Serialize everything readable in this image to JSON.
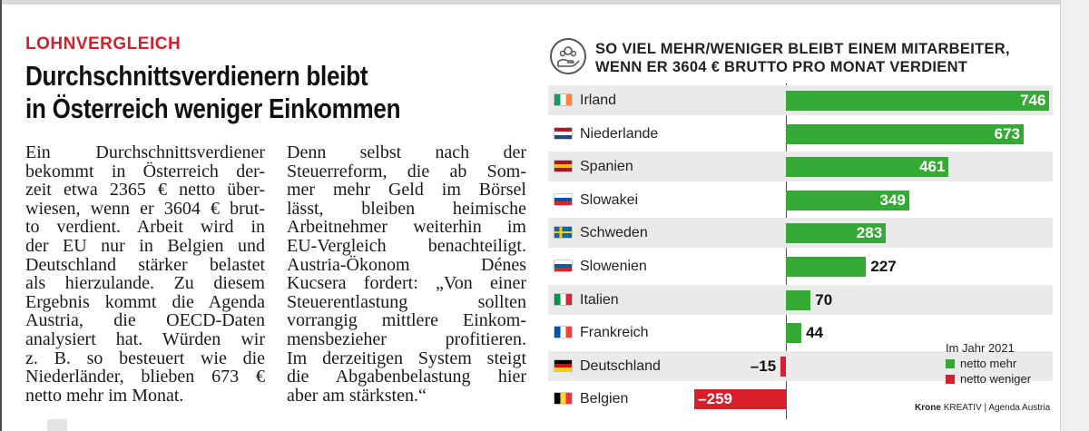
{
  "article": {
    "kicker": "LOHNVERGLEICH",
    "headline_line1": "Durchschnittsverdienern bleibt",
    "headline_line2": "in Österreich weniger Einkommen",
    "col1_lines": [
      "Ein Durchschnittsverdiener",
      "bekommt in Österreich der-",
      "zeit etwa 2365 € netto über-",
      "wiesen, wenn er 3604 € brut-",
      "to verdient. Arbeit wird in",
      "der EU nur in Belgien und",
      "Deutschland stärker belastet",
      "als hierzulande. Zu diesem",
      "Ergebnis kommt die Agenda",
      "Austria, die OECD-Daten",
      "analysiert hat. Würden wir",
      "z. B. so besteuert wie die",
      "Niederländer, blieben 673 €",
      "netto mehr im Monat."
    ],
    "col2_lines": [
      "Denn selbst nach der",
      "Steuerreform, die ab Som-",
      "mer mehr Geld im Börsel",
      "lässt, bleiben heimische",
      "Arbeitnehmer weiterhin im",
      "EU-Vergleich benachteiligt.",
      "Austria-Ökonom Dénes",
      "Kucsera fordert: „Von einer",
      "Steuerentlastung sollten",
      "vorrangig mittlere Einkom-",
      "mensbezieher profitieren.",
      "Im derzeitigen System steigt",
      "die Abgabenbelastung hier",
      "aber am stärksten.“"
    ]
  },
  "chart_data": {
    "type": "bar",
    "orientation": "horizontal",
    "title_line1": "SO VIEL MEHR/WENIGER BLEIBT EINEM MITARBEITER,",
    "title_line2": "WENN ER 3604 € BRUTTO PRO MONAT VERDIENT",
    "icon": "money-hand-icon",
    "categories": [
      "Irland",
      "Niederlande",
      "Spanien",
      "Slowakei",
      "Schweden",
      "Slowenien",
      "Italien",
      "Frankreich",
      "Deutschland",
      "Belgien"
    ],
    "values": [
      746,
      673,
      461,
      349,
      283,
      227,
      70,
      44,
      -15,
      -259
    ],
    "labels": [
      "746",
      "673",
      "461",
      "349",
      "283",
      "227",
      "70",
      "44",
      "–15",
      "–259"
    ],
    "xlim": [
      -300,
      750
    ],
    "grid": false,
    "legend": {
      "title": "Im Jahr 2021",
      "placement": "bottom-right",
      "items": [
        {
          "label": "netto mehr",
          "color": "#35a935"
        },
        {
          "label": "netto weniger",
          "color": "#d81e2a"
        }
      ]
    },
    "colors": {
      "positive": "#35a935",
      "negative": "#d81e2a",
      "row_background": "#eaeaea"
    },
    "flags": [
      [
        "#169b62",
        "#ffffff",
        "#ff883e"
      ],
      [
        "#ae1c28",
        "#ffffff",
        "#21468b"
      ],
      [
        "#aa151b",
        "#f1bf00",
        "#aa151b"
      ],
      [
        "#ffffff",
        "#0b4ea2",
        "#ee1c25"
      ],
      [
        "#006aa7",
        "#fecc00",
        "#006aa7"
      ],
      [
        "#ffffff",
        "#005da4",
        "#ed1c24"
      ],
      [
        "#009246",
        "#ffffff",
        "#ce2b37"
      ],
      [
        "#0055a4",
        "#ffffff",
        "#ef4135"
      ],
      [
        "#000000",
        "#dd0000",
        "#ffce00"
      ],
      [
        "#000000",
        "#fdda24",
        "#ef3340"
      ]
    ],
    "flag_orientation": [
      "v",
      "h",
      "h",
      "h",
      "cross",
      "h",
      "v",
      "v",
      "h",
      "v"
    ],
    "source_brand": "Krone",
    "source_brand_suffix": "KREATIV",
    "source_text": "| Agenda Austria"
  }
}
